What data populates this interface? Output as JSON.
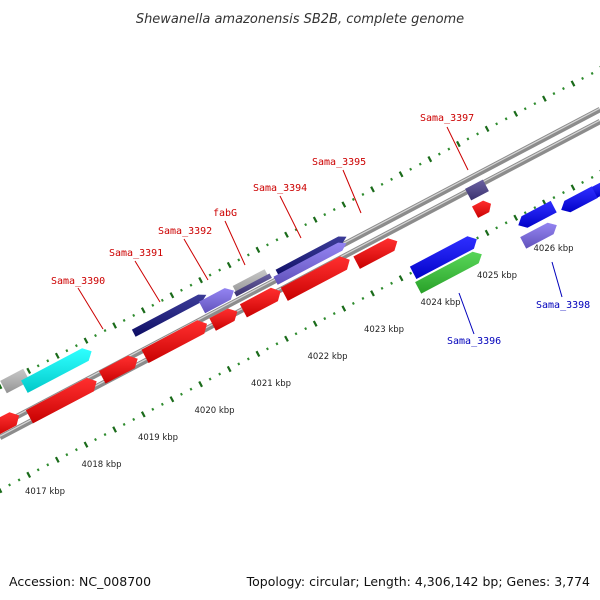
{
  "title": "Shewanella amazonensis SB2B, complete genome",
  "footer": {
    "accession": "Accession: NC_008700",
    "stats": "Topology: circular; Length: 4,306,142 bp; Genes: 3,774"
  },
  "colors": {
    "backbone": "#8c8c8c",
    "tick_major": "#1a6b1a",
    "tick_minor": "#2e8b2e",
    "label_forward": "#cc0000",
    "label_reverse": "#0000bb",
    "cds_red": "#ff0000",
    "cds_navy": "#101080",
    "cds_lavender": "#7b68ee",
    "cds_slate": "#483d8b",
    "cds_blue": "#0000ff",
    "cds_green": "#33cc33",
    "cds_cyan": "#00ffff",
    "cds_grey": "#bbbbbb"
  },
  "scale": {
    "unit": "kbp",
    "labels": [
      "4017 kbp",
      "4018 kbp",
      "4019 kbp",
      "4020 kbp",
      "4021 kbp",
      "4022 kbp",
      "4023 kbp",
      "4024 kbp",
      "4025 kbp",
      "4026 kbp"
    ]
  },
  "gene_labels": [
    {
      "text": "Sama_3390",
      "strand": "forward"
    },
    {
      "text": "Sama_3391",
      "strand": "forward"
    },
    {
      "text": "Sama_3392",
      "strand": "forward"
    },
    {
      "text": "fabG",
      "strand": "forward"
    },
    {
      "text": "Sama_3394",
      "strand": "forward"
    },
    {
      "text": "Sama_3395",
      "strand": "forward"
    },
    {
      "text": "Sama_3397",
      "strand": "forward"
    },
    {
      "text": "Sama_3396",
      "strand": "reverse"
    },
    {
      "text": "Sama_3398",
      "strand": "reverse"
    }
  ]
}
